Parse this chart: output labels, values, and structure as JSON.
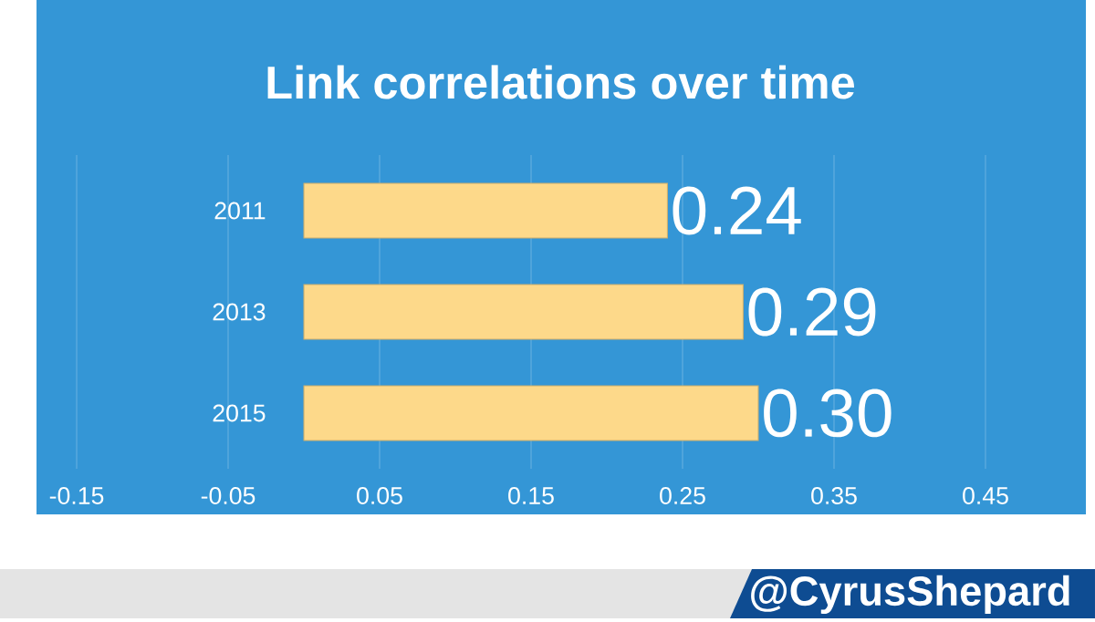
{
  "chart_data": {
    "type": "bar",
    "orientation": "horizontal",
    "title": "Link correlations over time",
    "categories": [
      "2011",
      "2013",
      "2015"
    ],
    "values": [
      0.24,
      0.29,
      0.3
    ],
    "value_labels": [
      "0.24",
      "0.29",
      "0.30"
    ],
    "color": "#fdd98a",
    "xlim": [
      -0.15,
      0.45
    ],
    "xticks": [
      -0.15,
      -0.05,
      0.05,
      0.15,
      0.25,
      0.35,
      0.45
    ],
    "grid": "x",
    "annotations": [
      "@CyrusShepard"
    ]
  }
}
